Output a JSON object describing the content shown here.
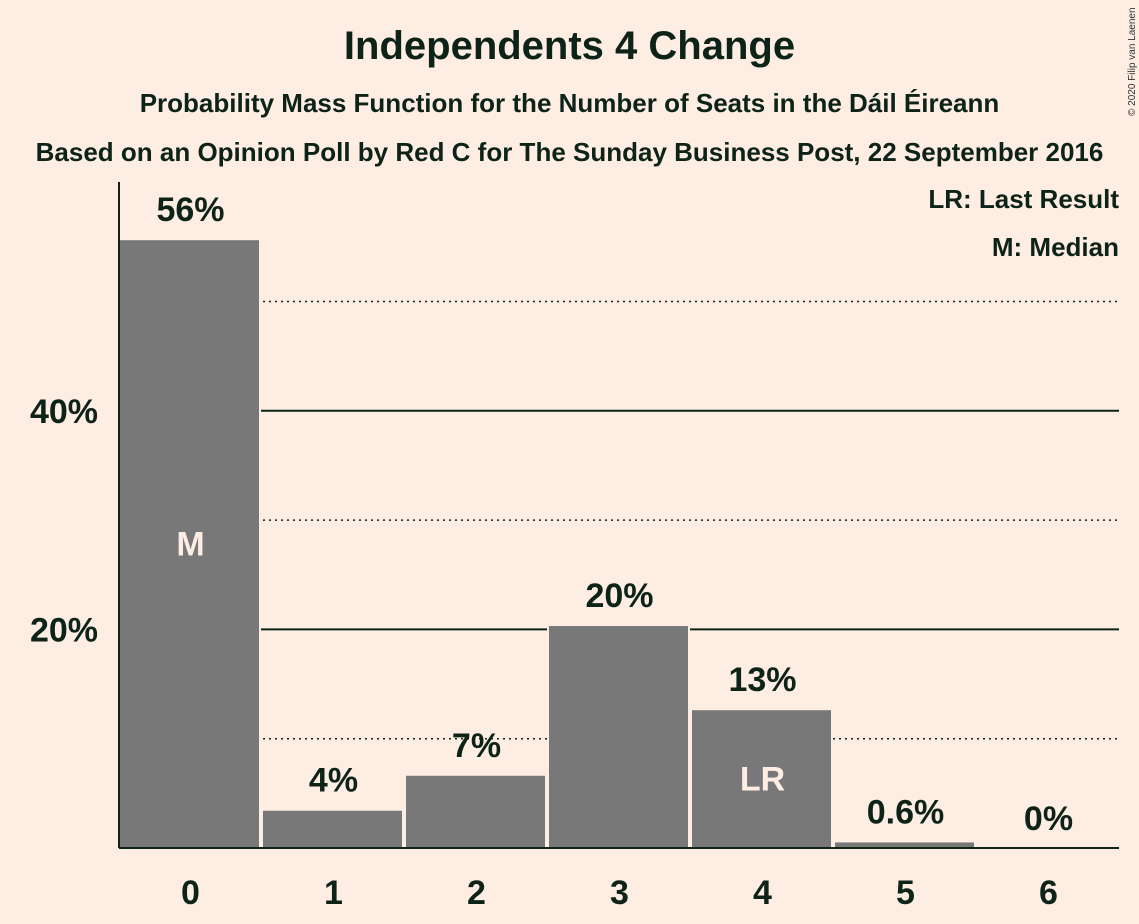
{
  "title": "Independents 4 Change",
  "subtitle": "Probability Mass Function for the Number of Seats in the Dáil Éireann",
  "source": "Based on an Opinion Poll by Red C for The Sunday Business Post, 22 September 2016",
  "copyright": "© 2020 Filip van Laenen",
  "legend": {
    "last_result": "LR: Last Result",
    "median": "M: Median"
  },
  "chart_data": {
    "type": "bar",
    "categories": [
      "0",
      "1",
      "2",
      "3",
      "4",
      "5",
      "6"
    ],
    "values": [
      55.7,
      3.5,
      6.7,
      20.4,
      12.7,
      0.6,
      0
    ],
    "value_labels": [
      "56%",
      "4%",
      "7%",
      "20%",
      "13%",
      "0.6%",
      "0%"
    ],
    "bar_markers": [
      "M",
      "",
      "",
      "",
      "LR",
      "",
      ""
    ],
    "ylim": [
      0,
      60
    ],
    "y_ticks": [
      20,
      40
    ],
    "y_tick_labels": [
      "20%",
      "40%"
    ],
    "minor_gridlines": [
      10,
      30,
      50
    ],
    "bar_color": "#787878",
    "background_color": "#FDEDE3",
    "text_color": "#0E2318",
    "marker_text_color": "#FDEDE3"
  }
}
